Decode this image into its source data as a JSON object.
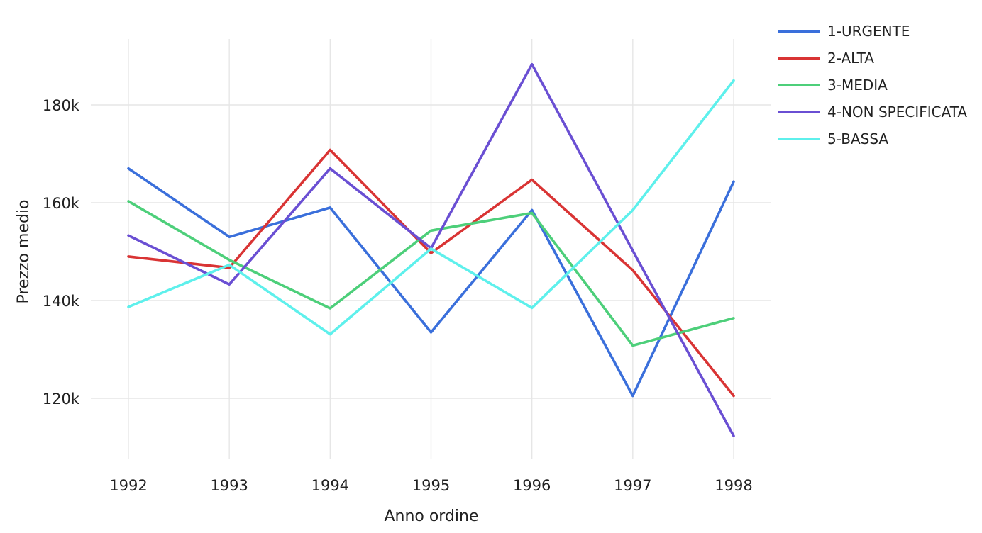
{
  "chart_data": {
    "type": "line",
    "title": "",
    "xlabel": "Anno ordine",
    "ylabel": "Prezzo medio",
    "x": [
      1992,
      1993,
      1994,
      1995,
      1996,
      1997,
      1998
    ],
    "x_tick_labels": [
      "1992",
      "1993",
      "1994",
      "1995",
      "1996",
      "1997",
      "1998"
    ],
    "ylim": [
      108000,
      193000
    ],
    "y_ticks": [
      120000,
      140000,
      160000,
      180000
    ],
    "y_tick_labels": [
      "120k",
      "140k",
      "160k",
      "180k"
    ],
    "grid": true,
    "legend_position": "top-right",
    "series": [
      {
        "name": "1-URGENTE",
        "color": "#3a6fdb",
        "values": [
          167000,
          153000,
          159000,
          133500,
          158500,
          120500,
          164300
        ]
      },
      {
        "name": "2-ALTA",
        "color": "#d93434",
        "values": [
          149000,
          146700,
          170800,
          149700,
          164700,
          146200,
          120500
        ]
      },
      {
        "name": "3-MEDIA",
        "color": "#4dcf7a",
        "values": [
          160300,
          148300,
          138400,
          154300,
          157900,
          130800,
          136400
        ]
      },
      {
        "name": "4-NON SPECIFICATA",
        "color": "#6a4fd3",
        "values": [
          153300,
          143300,
          167000,
          150700,
          188300,
          150200,
          112300
        ]
      },
      {
        "name": "5-BASSA",
        "color": "#5ef0ec",
        "values": [
          138700,
          147300,
          133100,
          150600,
          138500,
          158500,
          185000
        ]
      }
    ]
  }
}
